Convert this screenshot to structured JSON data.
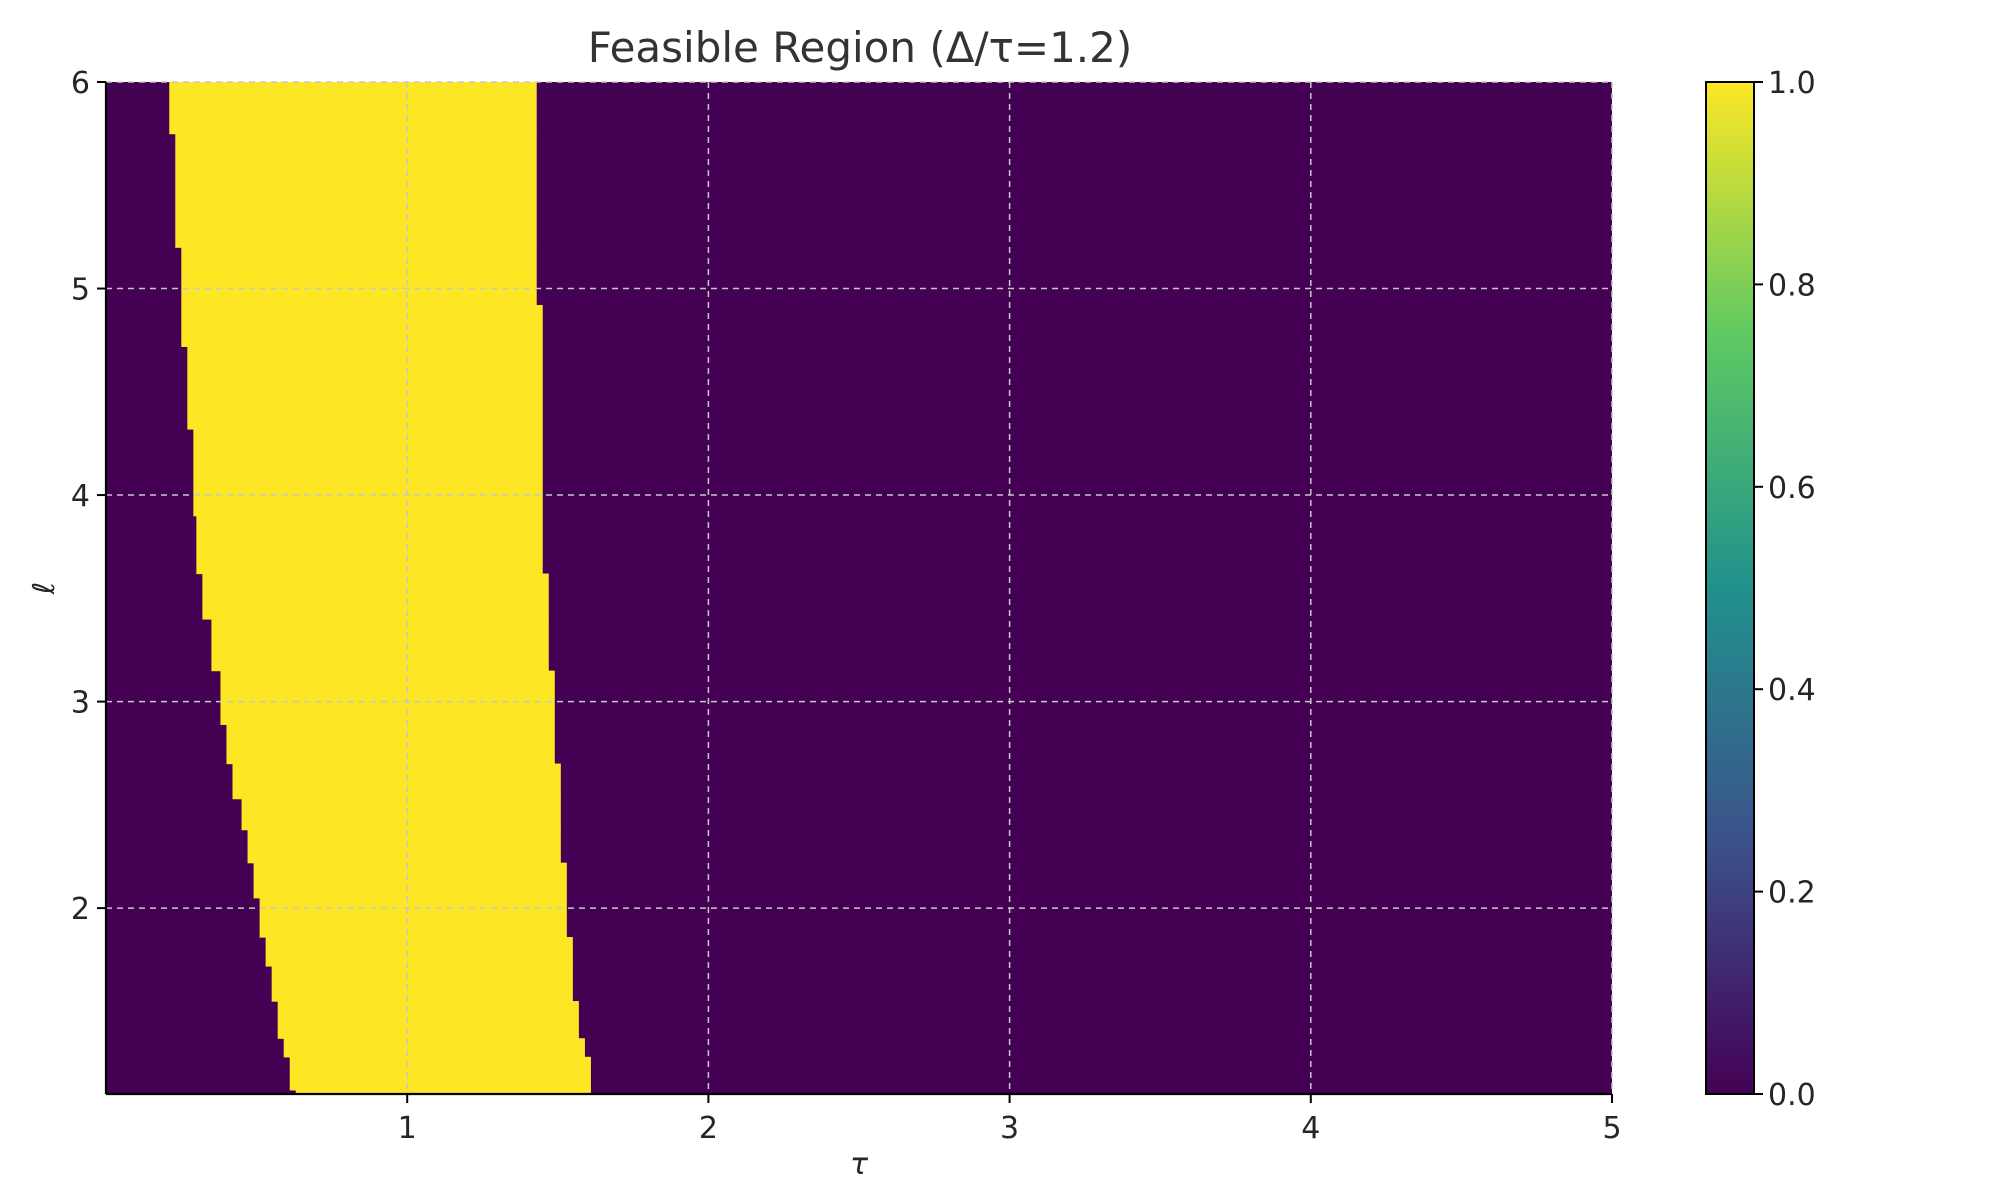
{
  "chart_data": {
    "type": "heatmap",
    "title": "Feasible Region (Δ/τ=1.2)",
    "xlabel": "τ",
    "ylabel": "ℓ",
    "xlim": [
      0,
      5
    ],
    "ylim": [
      1.1,
      6
    ],
    "x_ticks": [
      {
        "value": 1,
        "label": "1"
      },
      {
        "value": 2,
        "label": "2"
      },
      {
        "value": 3,
        "label": "3"
      },
      {
        "value": 4,
        "label": "4"
      },
      {
        "value": 5,
        "label": "5"
      }
    ],
    "y_ticks": [
      {
        "value": 2,
        "label": "2"
      },
      {
        "value": 3,
        "label": "3"
      },
      {
        "value": 4,
        "label": "4"
      },
      {
        "value": 5,
        "label": "5"
      },
      {
        "value": 6,
        "label": "6"
      }
    ],
    "grid": true,
    "colormap": "viridis",
    "colors": {
      "infeasible": "#440154",
      "feasible": "#fde725",
      "grid": "#c8c8c8"
    },
    "feasible_value": 1,
    "infeasible_value": 0,
    "feasible_region": {
      "description_points": "tau range [tau_min, tau_max] where value = 1, per ell band",
      "bands": [
        {
          "ell": [
            1.1,
            1.12
          ],
          "tau": [
            0.63,
            1.61
          ]
        },
        {
          "ell": [
            1.12,
            1.28
          ],
          "tau": [
            0.61,
            1.61
          ]
        },
        {
          "ell": [
            1.28,
            1.37
          ],
          "tau": [
            0.59,
            1.59
          ]
        },
        {
          "ell": [
            1.37,
            1.55
          ],
          "tau": [
            0.57,
            1.57
          ]
        },
        {
          "ell": [
            1.55,
            1.72
          ],
          "tau": [
            0.55,
            1.55
          ]
        },
        {
          "ell": [
            1.72,
            1.86
          ],
          "tau": [
            0.53,
            1.55
          ]
        },
        {
          "ell": [
            1.86,
            2.05
          ],
          "tau": [
            0.51,
            1.53
          ]
        },
        {
          "ell": [
            2.05,
            2.22
          ],
          "tau": [
            0.49,
            1.53
          ]
        },
        {
          "ell": [
            2.22,
            2.38
          ],
          "tau": [
            0.47,
            1.51
          ]
        },
        {
          "ell": [
            2.38,
            2.53
          ],
          "tau": [
            0.45,
            1.51
          ]
        },
        {
          "ell": [
            2.53,
            2.7
          ],
          "tau": [
            0.42,
            1.51
          ]
        },
        {
          "ell": [
            2.7,
            2.89
          ],
          "tau": [
            0.4,
            1.49
          ]
        },
        {
          "ell": [
            2.89,
            3.15
          ],
          "tau": [
            0.38,
            1.49
          ]
        },
        {
          "ell": [
            3.15,
            3.4
          ],
          "tau": [
            0.35,
            1.47
          ]
        },
        {
          "ell": [
            3.4,
            3.62
          ],
          "tau": [
            0.32,
            1.47
          ]
        },
        {
          "ell": [
            3.62,
            3.9
          ],
          "tau": [
            0.3,
            1.45
          ]
        },
        {
          "ell": [
            3.9,
            4.32
          ],
          "tau": [
            0.29,
            1.45
          ]
        },
        {
          "ell": [
            4.32,
            4.72
          ],
          "tau": [
            0.27,
            1.45
          ]
        },
        {
          "ell": [
            4.72,
            4.92
          ],
          "tau": [
            0.25,
            1.45
          ]
        },
        {
          "ell": [
            4.92,
            5.2
          ],
          "tau": [
            0.25,
            1.43
          ]
        },
        {
          "ell": [
            5.2,
            5.75
          ],
          "tau": [
            0.23,
            1.43
          ]
        },
        {
          "ell": [
            5.75,
            6.0
          ],
          "tau": [
            0.21,
            1.43
          ]
        }
      ]
    },
    "colorbar": {
      "range": [
        0,
        1
      ],
      "ticks": [
        {
          "value": 0.0,
          "label": "0.0"
        },
        {
          "value": 0.2,
          "label": "0.2"
        },
        {
          "value": 0.4,
          "label": "0.4"
        },
        {
          "value": 0.6,
          "label": "0.6"
        },
        {
          "value": 0.8,
          "label": "0.8"
        },
        {
          "value": 1.0,
          "label": "1.0"
        }
      ],
      "stops": [
        "#440154",
        "#3b528b",
        "#21918c",
        "#5ec962",
        "#fde725"
      ]
    }
  }
}
